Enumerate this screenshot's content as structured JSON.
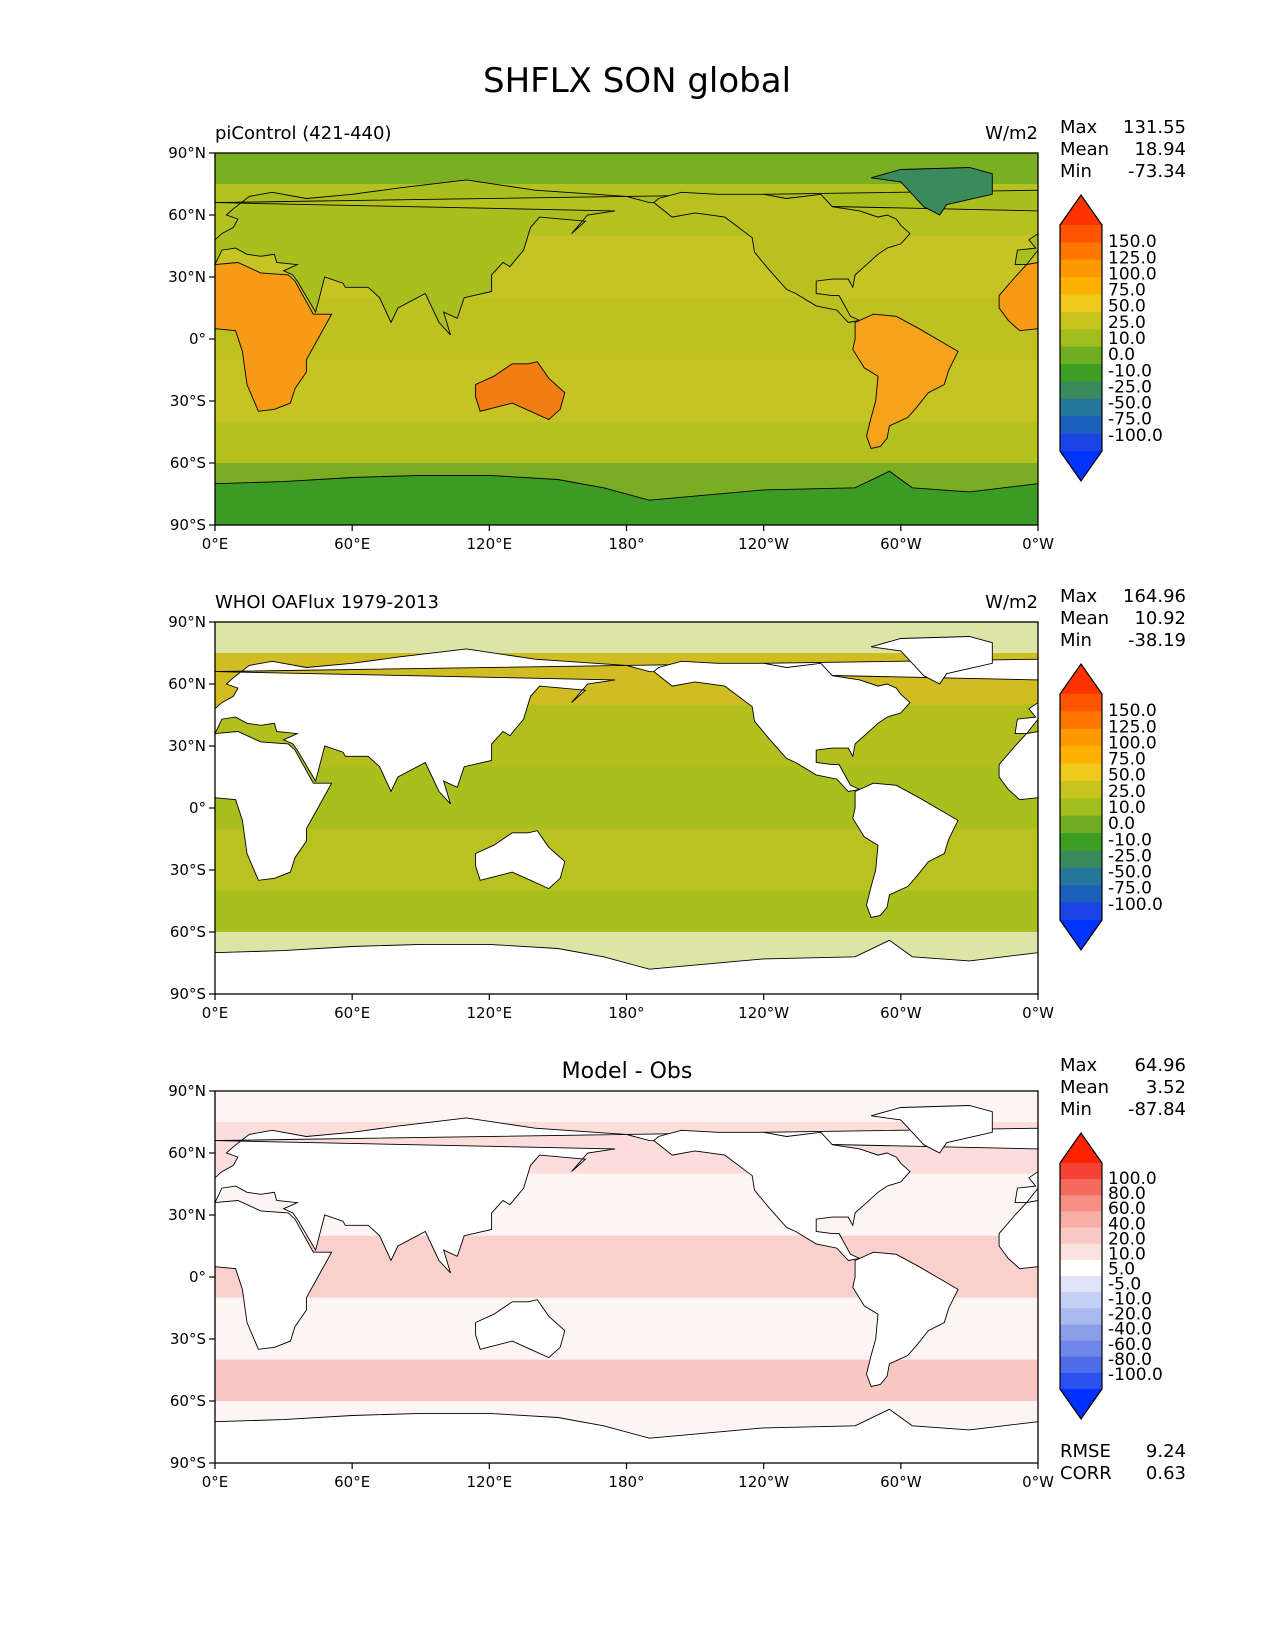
{
  "figure": {
    "title": "SHFLX SON global"
  },
  "axes": {
    "lat_ticks": [
      "90°N",
      "60°N",
      "30°N",
      "0°",
      "30°S",
      "60°S",
      "90°S"
    ],
    "lon_ticks": [
      "0°E",
      "60°E",
      "120°E",
      "180°",
      "120°W",
      "60°W",
      "0°W"
    ]
  },
  "panels": [
    {
      "left_title": "piControl (421-440)",
      "center_title": "",
      "units": "W/m2",
      "stats": {
        "max_label": "Max",
        "max": "131.55",
        "mean_label": "Mean",
        "mean": "18.94",
        "min_label": "Min",
        "min": "-73.34"
      },
      "colorbar": {
        "levels": [
          "150.0",
          "125.0",
          "100.0",
          "75.0",
          "50.0",
          "25.0",
          "10.0",
          "0.0",
          "-10.0",
          "-25.0",
          "-50.0",
          "-75.0",
          "-100.0"
        ],
        "colors": [
          "#ff3300",
          "#ff5500",
          "#ff7700",
          "#ff9900",
          "#ffb100",
          "#f0c81e",
          "#c8c41e",
          "#a2bd1e",
          "#6fad21",
          "#3d9e24",
          "#3a8a5c",
          "#26759a",
          "#1b5fbd",
          "#1a44e4",
          "#0033ff"
        ]
      },
      "background": "#c6c423",
      "land_fill": "#6fad21",
      "features": [
        {
          "label": "africa",
          "color": "#f79a14"
        },
        {
          "label": "australia",
          "color": "#f27d10"
        },
        {
          "label": "south-america",
          "color": "#f4a31a"
        },
        {
          "label": "antarctica",
          "color": "#3c9b24"
        }
      ]
    },
    {
      "left_title": "WHOI OAFlux 1979-2013",
      "center_title": "",
      "units": "W/m2",
      "stats": {
        "max_label": "Max",
        "max": "164.96",
        "mean_label": "Mean",
        "mean": "10.92",
        "min_label": "Min",
        "min": "-38.19"
      },
      "colorbar": {
        "levels": [
          "150.0",
          "125.0",
          "100.0",
          "75.0",
          "50.0",
          "25.0",
          "10.0",
          "0.0",
          "-10.0",
          "-25.0",
          "-50.0",
          "-75.0",
          "-100.0"
        ],
        "colors": [
          "#ff3300",
          "#ff5500",
          "#ff7700",
          "#ff9900",
          "#ffb100",
          "#f0c81e",
          "#c8c41e",
          "#a2bd1e",
          "#6fad21",
          "#3d9e24",
          "#3a8a5c",
          "#26759a",
          "#1b5fbd",
          "#1a44e4",
          "#0033ff"
        ]
      },
      "background": "#a8bf1e",
      "land_fill": "#ffffff"
    },
    {
      "left_title": "",
      "center_title": "Model - Obs",
      "units": "",
      "stats": {
        "max_label": "Max",
        "max": "64.96",
        "mean_label": "Mean",
        "mean": "3.52",
        "min_label": "Min",
        "min": "-87.84"
      },
      "colorbar": {
        "levels": [
          "100.0",
          "80.0",
          "60.0",
          "40.0",
          "20.0",
          "10.0",
          "5.0",
          "-5.0",
          "-10.0",
          "-20.0",
          "-40.0",
          "-60.0",
          "-80.0",
          "-100.0"
        ],
        "colors": [
          "#ff2200",
          "#f54436",
          "#f46a5e",
          "#f58f85",
          "#f7aea6",
          "#f9c9c4",
          "#fbe2de",
          "#ffffff",
          "#dfe4f8",
          "#c5cef4",
          "#a9b8ef",
          "#8b9eea",
          "#6e86e6",
          "#4f6ce8",
          "#2c4ff0",
          "#0030ff"
        ]
      },
      "background": "#fbe6e3",
      "land_fill": "#ffffff",
      "metrics": {
        "rmse_label": "RMSE",
        "rmse": "9.24",
        "corr_label": "CORR",
        "corr": "0.63"
      }
    }
  ],
  "chart_data": {
    "type": "heatmap",
    "title": "SHFLX SON global",
    "x_range": [
      0,
      360
    ],
    "y_range": [
      -90,
      90
    ],
    "projection": "equirectangular",
    "panels": [
      {
        "name": "piControl (421-440)",
        "units": "W/m2",
        "max": 131.55,
        "mean": 18.94,
        "min": -73.34
      },
      {
        "name": "WHOI OAFlux 1979-2013",
        "units": "W/m2",
        "max": 164.96,
        "mean": 10.92,
        "min": -38.19
      },
      {
        "name": "Model - Obs",
        "max": 64.96,
        "mean": 3.52,
        "min": -87.84,
        "rmse": 9.24,
        "corr": 0.63
      }
    ]
  }
}
